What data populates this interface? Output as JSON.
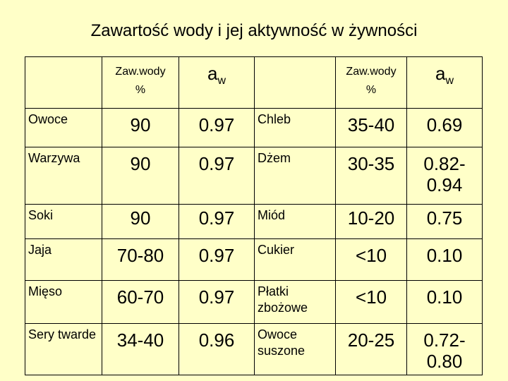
{
  "title": "Zawartość wody i jej aktywność w żywności",
  "headers": {
    "water_line1": "Zaw.wody",
    "water_line2": "%",
    "aw_main": "a",
    "aw_sub": "w"
  },
  "left_rows": [
    {
      "name": "Owoce",
      "water": "90",
      "aw": "0.97"
    },
    {
      "name": "Warzywa",
      "water": "90",
      "aw": "0.97"
    },
    {
      "name": "Soki",
      "water": "90",
      "aw": "0.97"
    },
    {
      "name": "Jaja",
      "water": "70-80",
      "aw": "0.97"
    },
    {
      "name": "Mięso",
      "water": "60-70",
      "aw": "0.97"
    },
    {
      "name": "Sery twarde",
      "water": "34-40",
      "aw": "0.96"
    }
  ],
  "right_rows": [
    {
      "name": "Chleb",
      "water": "35-40",
      "aw": "0.69"
    },
    {
      "name": "Dżem",
      "water": "30-35",
      "aw": "0.82-0.94"
    },
    {
      "name": "Miód",
      "water": "10-20",
      "aw": "0.75"
    },
    {
      "name": "Cukier",
      "water": "<10",
      "aw": "0.10"
    },
    {
      "name": "Płatki zbożowe",
      "water": "<10",
      "aw": "0.10"
    },
    {
      "name": "Owoce suszone",
      "water": "20-25",
      "aw": "0.72-0.80"
    }
  ]
}
